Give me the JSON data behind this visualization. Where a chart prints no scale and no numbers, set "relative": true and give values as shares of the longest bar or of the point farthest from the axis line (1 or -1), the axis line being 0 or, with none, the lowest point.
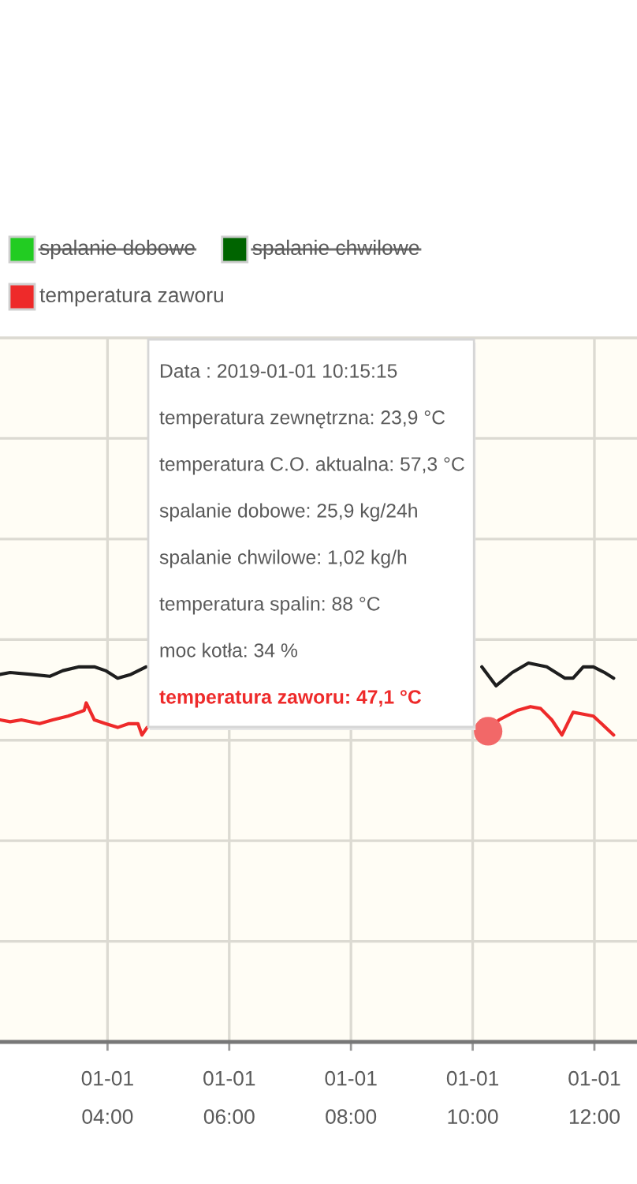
{
  "chart_data": {
    "type": "line",
    "relative": true,
    "grid": true,
    "legend": "top",
    "tick_labels": "x",
    "line_style": "solid",
    "xlim": [
      "2019-01-01T02:14",
      "2019-01-01T12:42"
    ],
    "xticks": [
      {
        "value": "2019-01-01T04:00",
        "label": "01-01\n04:00"
      },
      {
        "value": "2019-01-01T06:00",
        "label": "01-01\n06:00"
      },
      {
        "value": "2019-01-01T08:00",
        "label": "01-01\n08:00"
      },
      {
        "value": "2019-01-01T10:00",
        "label": "01-01\n10:00"
      },
      {
        "value": "2019-01-01T12:00",
        "label": "01-01\n12:00"
      }
    ],
    "series": [
      {
        "color": "#1e1e1e",
        "x": [
          "2019-01-01T02:14",
          "2019-01-01T02:24",
          "2019-01-01T02:45",
          "2019-01-01T03:03",
          "2019-01-01T03:16",
          "2019-01-01T03:32",
          "2019-01-01T03:47",
          "2019-01-01T03:58",
          "2019-01-01T04:10",
          "2019-01-01T04:23",
          "2019-01-01T04:38",
          "2019-01-01T07:30",
          "2019-01-01T10:09",
          "2019-01-01T10:23",
          "2019-01-01T10:39",
          "2019-01-01T10:55",
          "2019-01-01T11:13",
          "2019-01-01T11:31",
          "2019-01-01T11:39",
          "2019-01-01T11:49",
          "2019-01-01T11:59",
          "2019-01-01T12:10",
          "2019-01-01T12:19"
        ],
        "values": [
          0.97,
          0.975,
          0.97,
          0.965,
          0.98,
          0.99,
          0.99,
          0.98,
          0.96,
          0.97,
          0.99,
          null,
          0.99,
          0.94,
          0.975,
          1.0,
          0.99,
          0.96,
          0.96,
          0.99,
          0.99,
          0.975,
          0.96
        ]
      },
      {
        "name": "spalanie dobowe",
        "color": "#22cc22"
      },
      {
        "name": "spalanie chwilowe",
        "color": "#006400"
      },
      {
        "name": "temperatura zaworu",
        "color": "#ee2a2a",
        "x": [
          "2019-01-01T02:14",
          "2019-01-01T02:24",
          "2019-01-01T02:35",
          "2019-01-01T02:53",
          "2019-01-01T03:06",
          "2019-01-01T03:21",
          "2019-01-01T03:32",
          "2019-01-01T03:37",
          "2019-01-01T03:39",
          "2019-01-01T03:47",
          "2019-01-01T03:58",
          "2019-01-01T04:10",
          "2019-01-01T04:21",
          "2019-01-01T04:30",
          "2019-01-01T04:34",
          "2019-01-01T04:39",
          "2019-01-01T07:30",
          "2019-01-01T10:15:15",
          "2019-01-01T10:26",
          "2019-01-01T10:44",
          "2019-01-01T10:57",
          "2019-01-01T11:07",
          "2019-01-01T11:18",
          "2019-01-01T11:28",
          "2019-01-01T11:39",
          "2019-01-01T11:49",
          "2019-01-01T11:59",
          "2019-01-01T12:19"
        ],
        "values": [
          0.85,
          0.845,
          0.85,
          0.84,
          0.85,
          0.86,
          0.87,
          0.875,
          0.895,
          0.85,
          0.84,
          0.83,
          0.84,
          0.84,
          0.81,
          0.83,
          null,
          0.82,
          0.85,
          0.875,
          0.885,
          0.88,
          0.85,
          0.81,
          0.87,
          0.865,
          0.86,
          0.81
        ]
      },
      {
        "type": "scatter",
        "color": "#f26868",
        "x": [
          "2019-01-01T10:15:15"
        ],
        "values": [
          0.82
        ]
      }
    ],
    "annotations": [
      "Data : 2019-01-01 10:15:15",
      "temperatura zewnętrzna: 23,9 °C",
      "temperatura C.O. aktualna: 57,3 °C",
      "spalanie dobowe: 25,9 kg/24h",
      "spalanie chwilowe: 1,02 kg/h",
      "temperatura spalin: 88 °C",
      "moc kotła: 34 %",
      "temperatura zaworu: 47,1 °C"
    ]
  }
}
